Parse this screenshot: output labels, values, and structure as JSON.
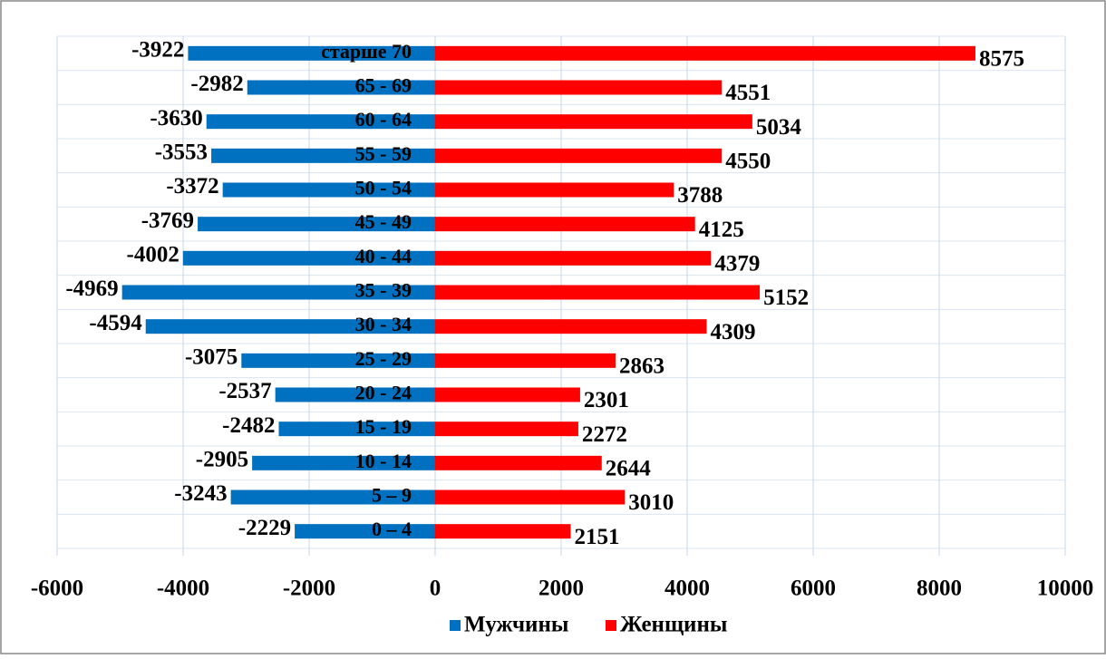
{
  "chart_data": {
    "type": "bar",
    "orientation": "horizontal",
    "categories": [
      "старше 70",
      "65 - 69",
      "60 - 64",
      "55 - 59",
      "50 - 54",
      "45 - 49",
      "40 - 44",
      "35 - 39",
      "30 - 34",
      "25 - 29",
      "20 - 24",
      "15 - 19",
      "10 - 14",
      "5 – 9",
      "0 – 4"
    ],
    "series": [
      {
        "name": "Мужчины",
        "color": "#0070c0",
        "values": [
          -3922,
          -2982,
          -3630,
          -3553,
          -3372,
          -3769,
          -4002,
          -4969,
          -4594,
          -3075,
          -2537,
          -2482,
          -2905,
          -3243,
          -2229
        ]
      },
      {
        "name": "Женщины",
        "color": "#ff0000",
        "values": [
          8575,
          4551,
          5034,
          4550,
          3788,
          4125,
          4379,
          5152,
          4309,
          2863,
          2301,
          2272,
          2644,
          3010,
          2151
        ]
      }
    ],
    "xlim": [
      -6000,
      10000
    ],
    "xticks": [
      -6000,
      -4000,
      -2000,
      0,
      2000,
      4000,
      6000,
      8000,
      10000
    ],
    "grid": true,
    "legend": "bottom"
  }
}
